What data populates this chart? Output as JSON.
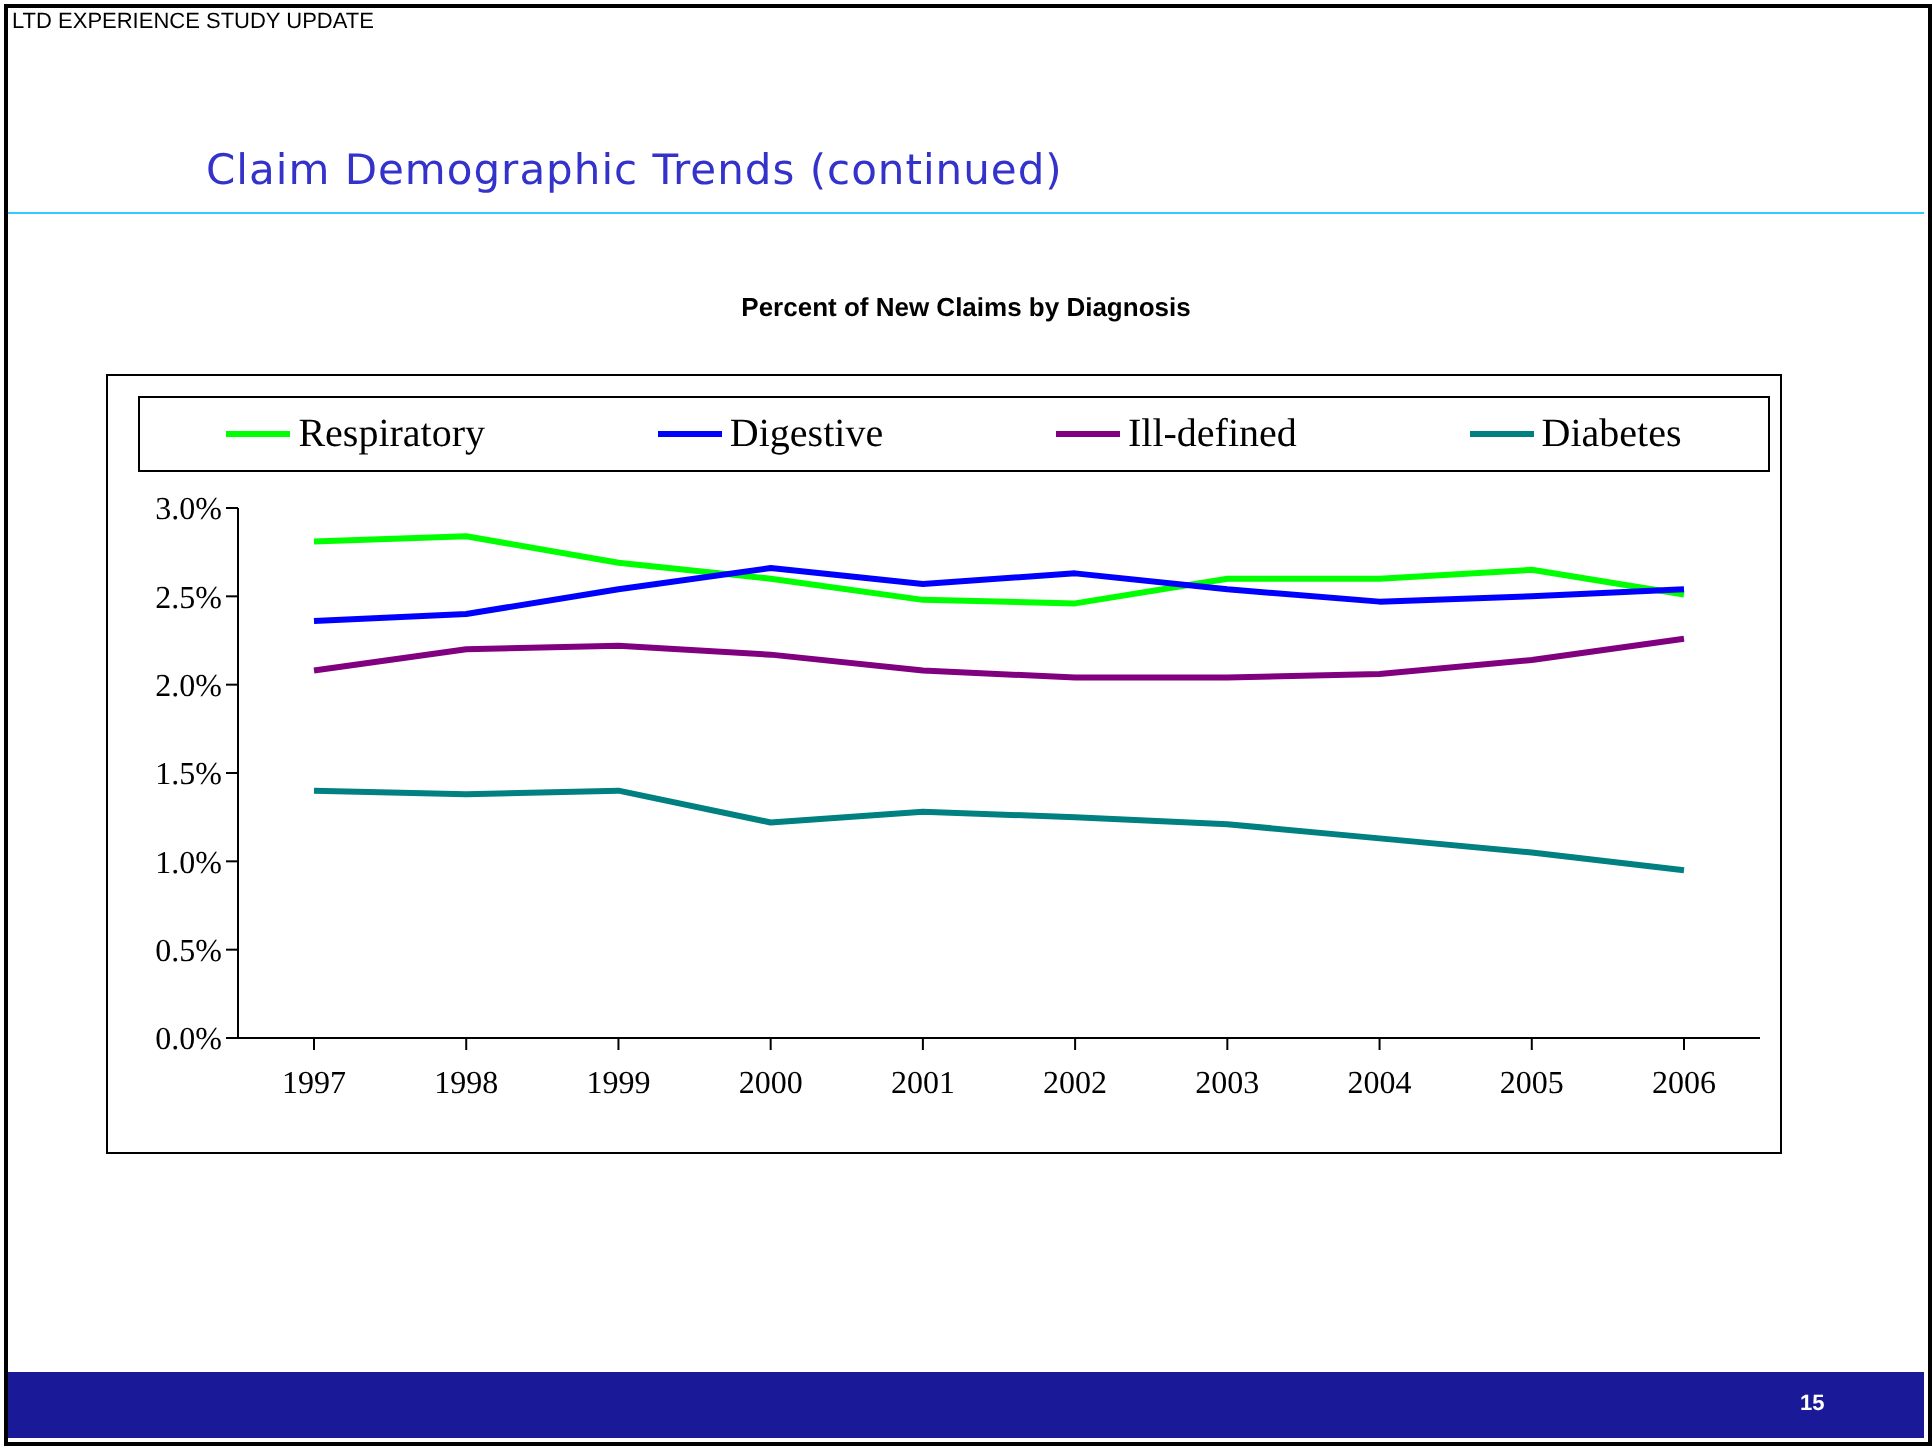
{
  "chart_data": {
    "type": "line",
    "title": "Percent of New Claims by Diagnosis",
    "subtitle": "Claim Demographic Trends (continued)",
    "annotations": [
      "LTD EXPERIENCE STUDY UPDATE",
      "15"
    ],
    "categories": [
      "1997",
      "1998",
      "1999",
      "2000",
      "2001",
      "2002",
      "2003",
      "2004",
      "2005",
      "2006"
    ],
    "series": [
      {
        "name": "Respiratory",
        "color": "#00ff00",
        "values": [
          2.81,
          2.84,
          2.69,
          2.6,
          2.48,
          2.46,
          2.6,
          2.6,
          2.65,
          2.51
        ]
      },
      {
        "name": "Digestive",
        "color": "#0000ff",
        "values": [
          2.36,
          2.4,
          2.54,
          2.66,
          2.57,
          2.63,
          2.54,
          2.47,
          2.5,
          2.54
        ]
      },
      {
        "name": "Ill-defined",
        "color": "#800080",
        "values": [
          2.08,
          2.2,
          2.22,
          2.17,
          2.08,
          2.04,
          2.04,
          2.06,
          2.14,
          2.26
        ]
      },
      {
        "name": "Diabetes",
        "color": "#008080",
        "values": [
          1.4,
          1.38,
          1.4,
          1.22,
          1.28,
          1.25,
          1.21,
          1.13,
          1.05,
          0.95
        ]
      }
    ],
    "ylim": [
      0,
      3
    ],
    "yticks": [
      {
        "value": 0,
        "label": "0.0%"
      },
      {
        "value": 0.5,
        "label": "0.5%"
      },
      {
        "value": 1,
        "label": "1.0%"
      },
      {
        "value": 1.5,
        "label": "1.5%"
      },
      {
        "value": 2,
        "label": "2.0%"
      },
      {
        "value": 2.5,
        "label": "2.5%"
      },
      {
        "value": 3,
        "label": "3.0%"
      }
    ],
    "grid": false,
    "legend": "top",
    "marker": "none",
    "line_style": "solid"
  }
}
